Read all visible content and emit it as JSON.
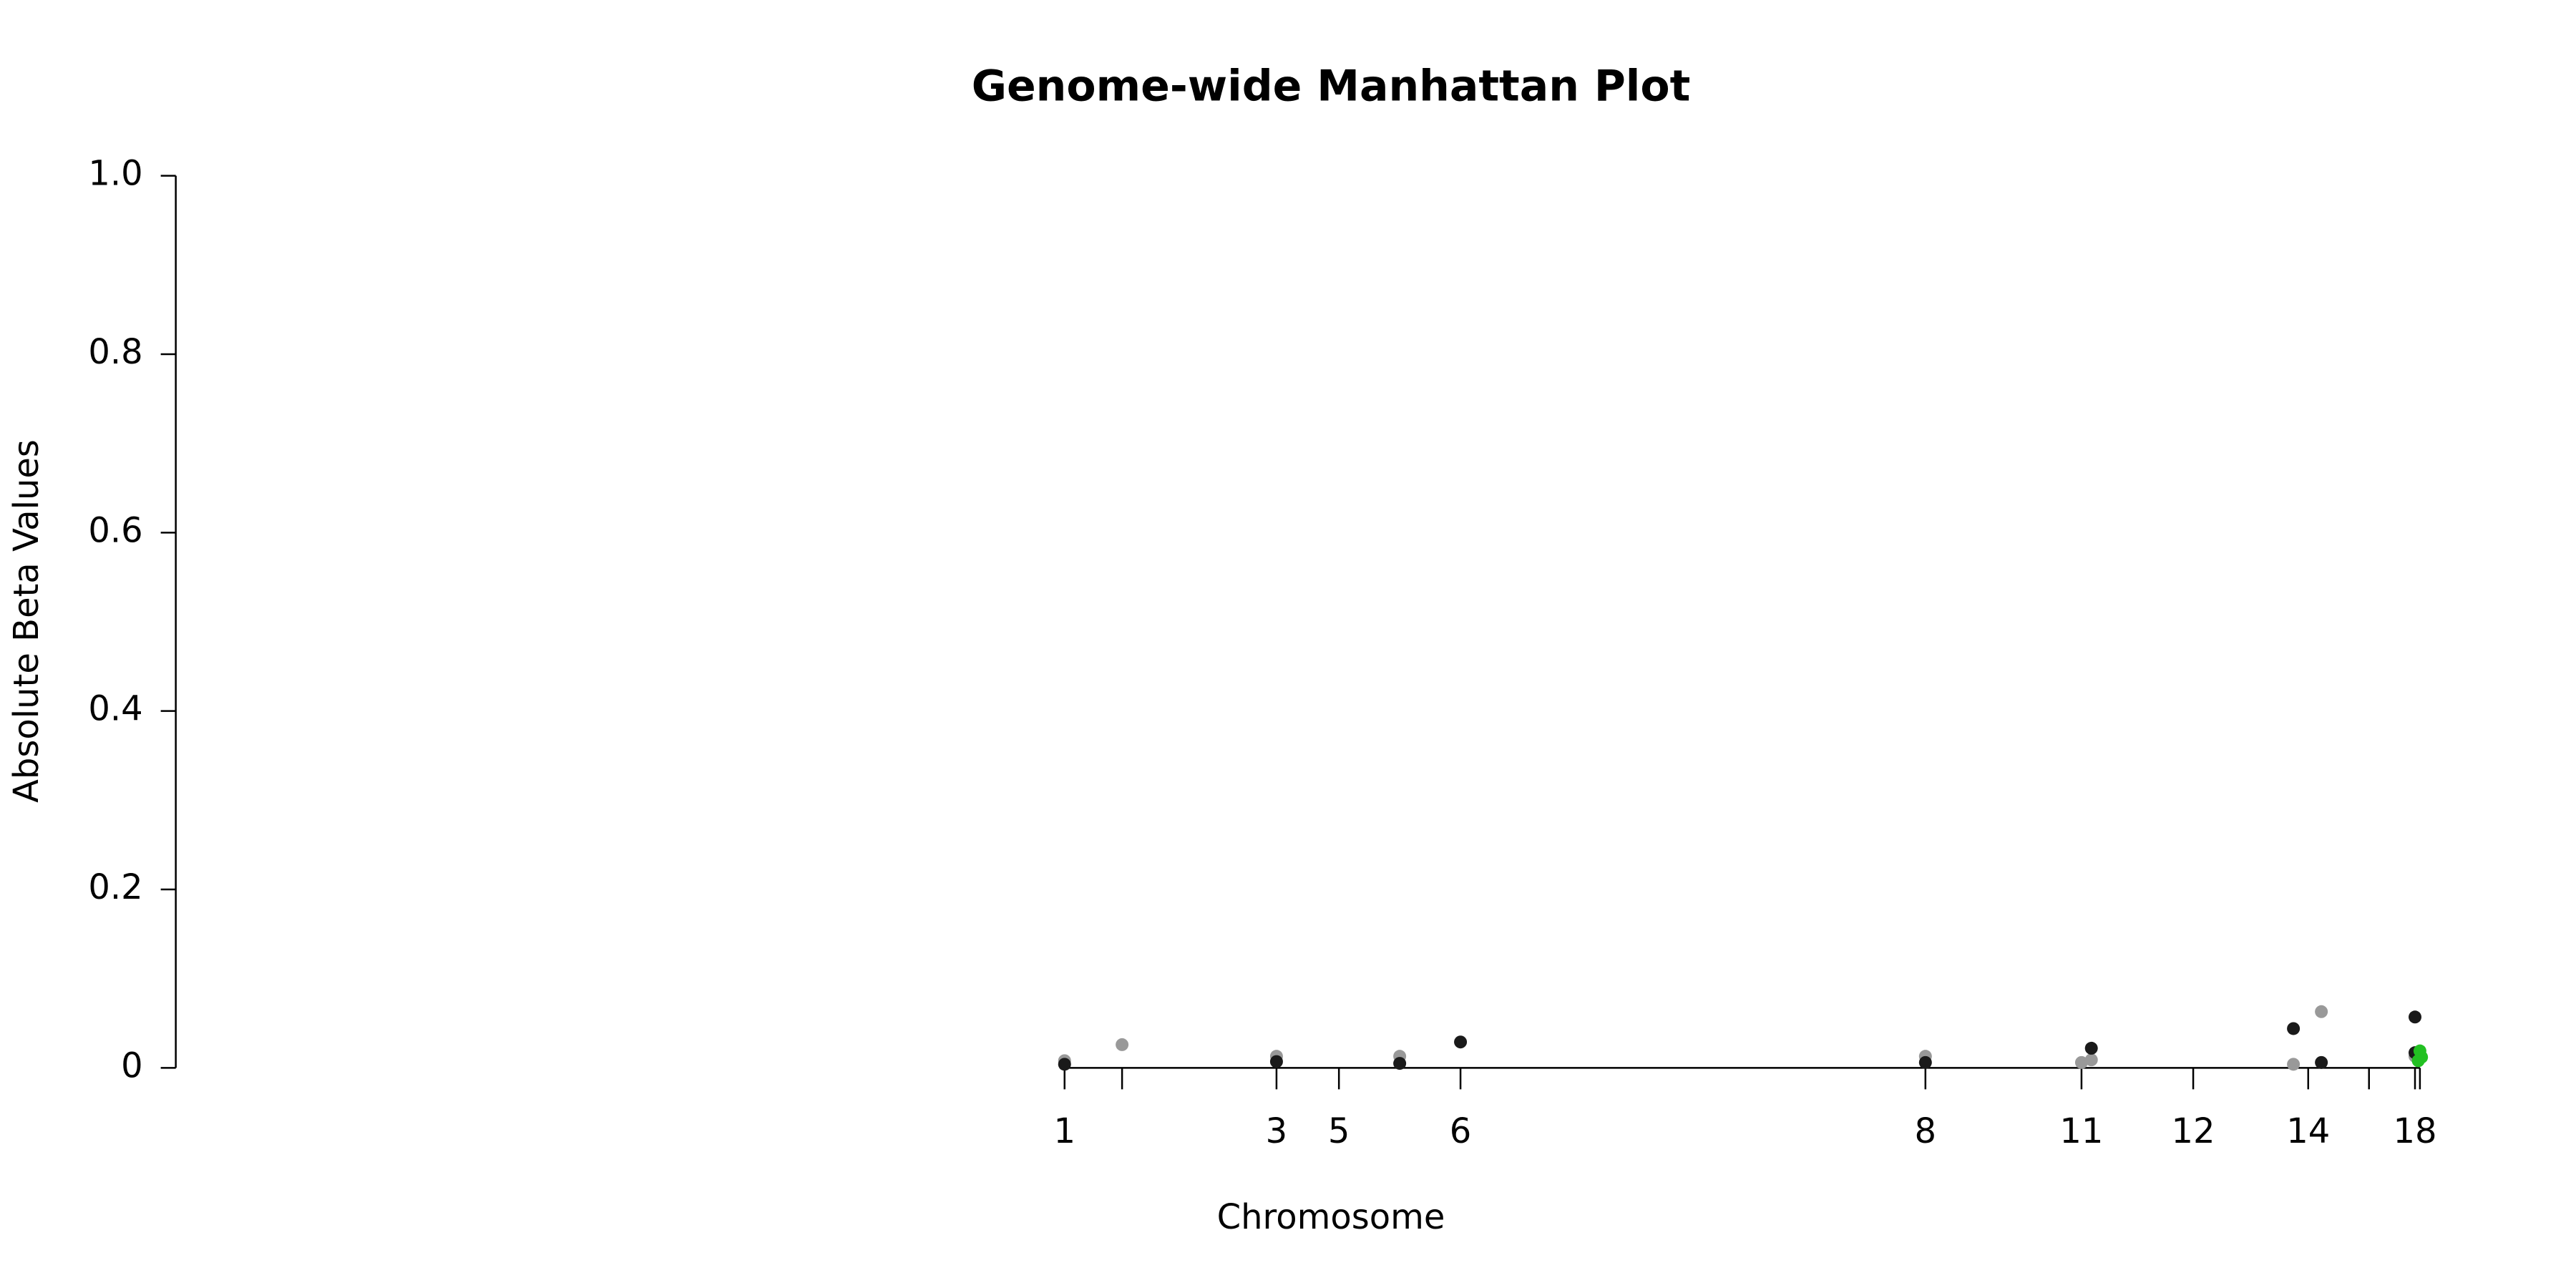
{
  "chart_data": {
    "type": "scatter",
    "title": "Genome-wide Manhattan Plot",
    "xlabel": "Chromosome",
    "ylabel": "Absolute Beta Values",
    "xlim": [
      0,
      1403
    ],
    "ylim": [
      0,
      1.0
    ],
    "yticks": [
      0,
      {
        "value": 0.2,
        "label": "0.2"
      },
      {
        "value": 0.4,
        "label": "0.4"
      },
      {
        "value": 0.6,
        "label": "0.6"
      },
      {
        "value": 0.8,
        "label": "0.8"
      },
      {
        "value": 1.0,
        "label": "1.0"
      }
    ],
    "xticks": [
      {
        "value": 541,
        "label": "1"
      },
      {
        "value": 576,
        "label": null
      },
      {
        "value": 670,
        "label": "3"
      },
      {
        "value": 708,
        "label": "5"
      },
      {
        "value": 782,
        "label": "6"
      },
      {
        "value": 1065,
        "label": "8"
      },
      {
        "value": 1160,
        "label": "11"
      },
      {
        "value": 1228,
        "label": "12"
      },
      {
        "value": 1298,
        "label": "14"
      },
      {
        "value": 1335,
        "label": null
      },
      {
        "value": 1363,
        "label": "18"
      },
      {
        "value": 1366,
        "label": null
      }
    ],
    "series": [
      {
        "color": "#999999",
        "x": [
          541,
          576,
          670,
          745,
          1065,
          1160,
          1166,
          1289,
          1306,
          1363
        ],
        "values": [
          0.008,
          0.026,
          0.013,
          0.013,
          0.013,
          0.006,
          0.009,
          0.004,
          0.063,
          0.013
        ]
      },
      {
        "color": "#1a1a1a",
        "x": [
          541,
          670,
          745,
          782,
          1065,
          1166,
          1289,
          1306,
          1363,
          1363
        ],
        "values": [
          0.004,
          0.007,
          0.005,
          0.029,
          0.006,
          0.022,
          0.044,
          0.006,
          0.057,
          0.017
        ]
      },
      {
        "color": "#22c022",
        "x": [
          1366,
          1365,
          1367
        ],
        "values": [
          0.019,
          0.008,
          0.012
        ]
      }
    ]
  }
}
